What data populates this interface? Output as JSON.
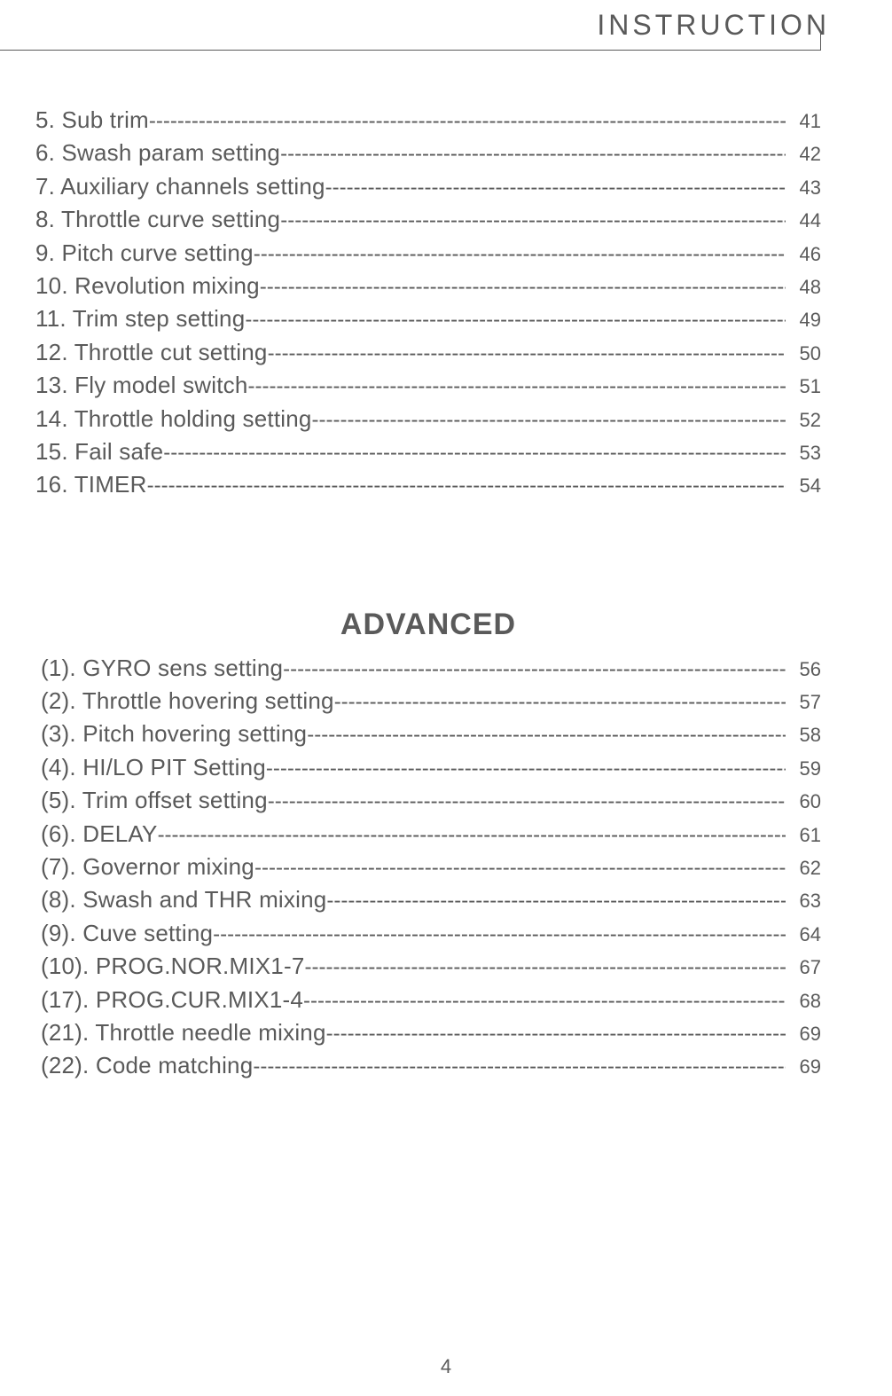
{
  "header": "INSTRUCTION",
  "main_toc": [
    {
      "num": " 5",
      "label": "Sub trim",
      "page": "41"
    },
    {
      "num": " 6",
      "label": "Swash param setting",
      "page": "42"
    },
    {
      "num": " 7",
      "label": "Auxiliary channels setting",
      "page": "43"
    },
    {
      "num": " 8",
      "label": "Throttle curve setting",
      "page": "44"
    },
    {
      "num": " 9",
      "label": "Pitch curve setting",
      "page": "46"
    },
    {
      "num": "10",
      "label": "Revolution mixing",
      "page": "48"
    },
    {
      "num": "11",
      "label": "Trim step setting",
      "page": "49"
    },
    {
      "num": "12",
      "label": "Throttle cut setting",
      "page": "50"
    },
    {
      "num": "13",
      "label": "Fly model switch",
      "page": "51"
    },
    {
      "num": "14",
      "label": "Throttle holding setting",
      "page": "52"
    },
    {
      "num": "15",
      "label": "Fail safe",
      "page": "53"
    },
    {
      "num": "16",
      "label": "TIMER",
      "page": "54"
    }
  ],
  "advanced_title": "ADVANCED",
  "advanced_toc": [
    {
      "num": "(1)",
      "label": "GYRO sens setting",
      "page": "56"
    },
    {
      "num": "(2)",
      "label": "Throttle hovering setting",
      "page": "57"
    },
    {
      "num": "(3)",
      "label": "Pitch hovering setting",
      "page": "58"
    },
    {
      "num": "(4)",
      "label": "HI/LO PIT Setting",
      "page": "59"
    },
    {
      "num": "(5)",
      "label": "Trim offset setting",
      "page": "60"
    },
    {
      "num": "(6)",
      "label": "DELAY",
      "page": "61"
    },
    {
      "num": "(7)",
      "label": "Governor mixing",
      "page": "62"
    },
    {
      "num": "(8)",
      "label": "Swash and THR mixing",
      "page": "63"
    },
    {
      "num": "(9)",
      "label": "Cuve setting",
      "page": "64"
    },
    {
      "num": "(10)",
      "label": "PROG.NOR.MIX1-7",
      "page": "67"
    },
    {
      "num": "(17)",
      "label": "PROG.CUR.MIX1-4",
      "page": "68"
    },
    {
      "num": "(21)",
      "label": "Throttle needle mixing",
      "page": "69"
    },
    {
      "num": "(22)",
      "label": "Code matching",
      "page": "69"
    }
  ],
  "page_number": "4",
  "style": {
    "text_color": "#5a5a5a",
    "background_color": "#ffffff",
    "main_font_size": 26,
    "page_font_size": 22,
    "header_font_size": 32,
    "title_font_size": 34,
    "leader_char": "-"
  }
}
